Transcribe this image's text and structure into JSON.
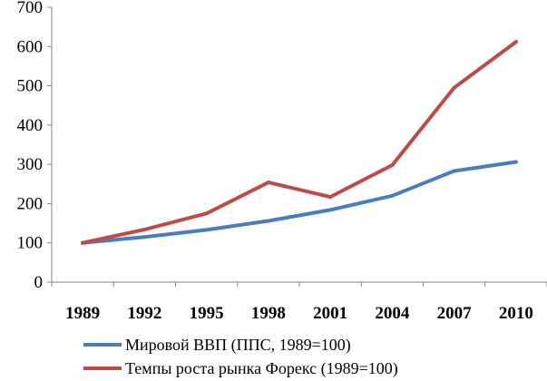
{
  "chart_data": {
    "type": "line",
    "x": [
      1989,
      1992,
      1995,
      1998,
      2001,
      2004,
      2007,
      2010
    ],
    "xticks": [
      "1989",
      "1992",
      "1995",
      "1998",
      "2001",
      "2004",
      "2007",
      "2010"
    ],
    "yticks": [
      0,
      100,
      200,
      300,
      400,
      500,
      600,
      700
    ],
    "ylim": [
      0,
      700
    ],
    "grid": false,
    "legend": "bottom",
    "series": [
      {
        "name": "Мировой ВВП (ППС, 1989=100)",
        "color": "#4a7ebb",
        "values": [
          100,
          115,
          133,
          156,
          184,
          220,
          283,
          306
        ]
      },
      {
        "name": "Темпы роста рынка Форекс (1989=100)",
        "color": "#be4b48",
        "values": [
          100,
          134,
          175,
          254,
          217,
          298,
          495,
          612
        ]
      }
    ]
  }
}
